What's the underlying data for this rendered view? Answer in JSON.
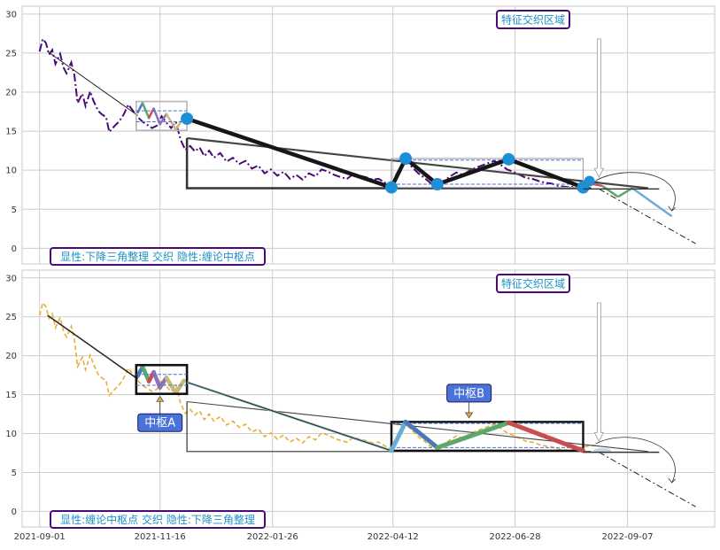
{
  "colors": {
    "grid": "#cccccc",
    "frame": "#c9c9c9",
    "price_top": "#4b0a7a",
    "price_bottom": "#e8ae35",
    "label_border": "#4b0a7a",
    "label_text": "#1e90c8",
    "box_fill": "#4a72d8",
    "node": "#1e8fd6",
    "seg_blue": "#6aaed6",
    "seg_steel": "#4a78b8",
    "seg_green": "#5aa86a",
    "seg_red": "#c84e4e",
    "seg_purple": "#8a73b8",
    "seg_khaki": "#c8b87a"
  },
  "chart_data": [
    {
      "type": "line",
      "panel": "top",
      "ylim": [
        -2,
        31
      ],
      "yticks": [
        0,
        5,
        10,
        15,
        20,
        25,
        30
      ],
      "xlim": [
        "2021-08-21",
        "2022-11-01"
      ],
      "xticks": [
        "2021-09-01",
        "2021-11-16",
        "2022-01-26",
        "2022-04-12",
        "2022-06-28",
        "2022-09-07"
      ],
      "xtick_labels": [
        "",
        "",
        "",
        "",
        "",
        ""
      ],
      "grid": true,
      "series": [
        {
          "style": "dashdot",
          "x": [
            "2021-09-01",
            "2021-09-03",
            "2021-09-05",
            "2021-09-07",
            "2021-09-09",
            "2021-09-11",
            "2021-09-14",
            "2021-09-16",
            "2021-09-18",
            "2021-09-21",
            "2021-09-23",
            "2021-09-25",
            "2021-09-28",
            "2021-09-30",
            "2021-10-03",
            "2021-10-05",
            "2021-10-08",
            "2021-10-10",
            "2021-10-13",
            "2021-10-15",
            "2021-10-18",
            "2021-10-21",
            "2021-10-24",
            "2021-10-27",
            "2021-10-30",
            "2021-11-02",
            "2021-11-05",
            "2021-11-08",
            "2021-11-11",
            "2021-11-14",
            "2021-11-17",
            "2021-11-20",
            "2021-11-23",
            "2021-11-26",
            "2021-11-29",
            "2021-12-02",
            "2021-12-05",
            "2021-12-08",
            "2021-12-11",
            "2021-12-14",
            "2021-12-17",
            "2021-12-20",
            "2021-12-24",
            "2021-12-28",
            "2022-01-01",
            "2022-01-05",
            "2022-01-09",
            "2022-01-13",
            "2022-01-17",
            "2022-01-21",
            "2022-01-25",
            "2022-01-29",
            "2022-02-02",
            "2022-02-06",
            "2022-02-10",
            "2022-02-14",
            "2022-02-18",
            "2022-02-22",
            "2022-02-26",
            "2022-03-02",
            "2022-03-06",
            "2022-03-10",
            "2022-03-14",
            "2022-03-18",
            "2022-03-22",
            "2022-03-26",
            "2022-03-30",
            "2022-04-03",
            "2022-04-07",
            "2022-04-09",
            "2022-04-11",
            "2022-04-14",
            "2022-04-17",
            "2022-04-20",
            "2022-04-24",
            "2022-04-28",
            "2022-05-02",
            "2022-05-06",
            "2022-05-10",
            "2022-05-14",
            "2022-05-18",
            "2022-05-22",
            "2022-05-26",
            "2022-05-30",
            "2022-06-03",
            "2022-06-07",
            "2022-06-11",
            "2022-06-15",
            "2022-06-19",
            "2022-06-23",
            "2022-06-27",
            "2022-07-01",
            "2022-07-05",
            "2022-07-09",
            "2022-07-13",
            "2022-07-17",
            "2022-07-21",
            "2022-07-25",
            "2022-07-29",
            "2022-08-02",
            "2022-08-06",
            "2022-08-10",
            "2022-08-14",
            "2022-08-18",
            "2022-08-20"
          ],
          "y": [
            25.2,
            26.8,
            26.3,
            24.8,
            25.4,
            23.6,
            24.9,
            23.2,
            22.4,
            23.8,
            22.1,
            18.6,
            19.8,
            18.2,
            20.1,
            18.9,
            17.6,
            17.2,
            16.8,
            14.9,
            15.6,
            16.2,
            17.1,
            18.4,
            17.6,
            16.8,
            16.2,
            15.8,
            15.4,
            15.7,
            16.9,
            16.1,
            15.4,
            16.2,
            13.9,
            12.6,
            13.1,
            12.4,
            12.9,
            11.8,
            12.5,
            11.6,
            12.2,
            11.1,
            11.6,
            10.8,
            11.2,
            10.2,
            10.6,
            9.6,
            10.1,
            9.3,
            9.8,
            8.9,
            9.4,
            8.8,
            9.6,
            9.2,
            10.1,
            9.8,
            9.4,
            9.1,
            8.9,
            9.5,
            9.3,
            9.1,
            8.8,
            8.9,
            8.4,
            8.2,
            7.9,
            9.4,
            10.5,
            11.2,
            10.4,
            9.6,
            9.0,
            8.3,
            8.1,
            8.6,
            9.2,
            9.7,
            9.4,
            9.9,
            10.3,
            10.6,
            10.9,
            11.2,
            10.7,
            10.1,
            9.8,
            9.4,
            9.0,
            8.9,
            8.6,
            8.4,
            8.3,
            8.0,
            7.9,
            7.8,
            8.1,
            8.3,
            8.4,
            8.5,
            8.4
          ]
        }
      ],
      "annotations": {
        "topright_label": "特征交织区域",
        "bottom_label": "显性:下降三角整理 交织 隐性:缠论中枢点"
      }
    },
    {
      "type": "line",
      "panel": "bottom",
      "ylim": [
        -2,
        31
      ],
      "yticks": [
        0,
        5,
        10,
        15,
        20,
        25,
        30
      ],
      "xlim": [
        "2021-08-21",
        "2022-11-01"
      ],
      "xticks": [
        "2021-09-01",
        "2021-11-16",
        "2022-01-26",
        "2022-04-12",
        "2022-06-28",
        "2022-09-07"
      ],
      "xtick_labels": [
        "2021-09-01",
        "2021-11-16",
        "2022-01-26",
        "2022-04-12",
        "2022-06-28",
        "2022-09-07"
      ],
      "grid": true,
      "series": [
        {
          "style": "dashed",
          "x": [
            "2021-09-01",
            "2021-09-03",
            "2021-09-05",
            "2021-09-07",
            "2021-09-09",
            "2021-09-11",
            "2021-09-14",
            "2021-09-16",
            "2021-09-18",
            "2021-09-21",
            "2021-09-23",
            "2021-09-25",
            "2021-09-28",
            "2021-09-30",
            "2021-10-03",
            "2021-10-05",
            "2021-10-08",
            "2021-10-10",
            "2021-10-13",
            "2021-10-15",
            "2021-10-18",
            "2021-10-21",
            "2021-10-24",
            "2021-10-27",
            "2021-10-30",
            "2021-11-02",
            "2021-11-05",
            "2021-11-08",
            "2021-11-11",
            "2021-11-14",
            "2021-11-17",
            "2021-11-20",
            "2021-11-23",
            "2021-11-26",
            "2021-11-29",
            "2021-12-02",
            "2021-12-05",
            "2021-12-08",
            "2021-12-11",
            "2021-12-14",
            "2021-12-17",
            "2021-12-20",
            "2021-12-24",
            "2021-12-28",
            "2022-01-01",
            "2022-01-05",
            "2022-01-09",
            "2022-01-13",
            "2022-01-17",
            "2022-01-21",
            "2022-01-25",
            "2022-01-29",
            "2022-02-02",
            "2022-02-06",
            "2022-02-10",
            "2022-02-14",
            "2022-02-18",
            "2022-02-22",
            "2022-02-26",
            "2022-03-02",
            "2022-03-06",
            "2022-03-10",
            "2022-03-14",
            "2022-03-18",
            "2022-03-22",
            "2022-03-26",
            "2022-03-30",
            "2022-04-03",
            "2022-04-07",
            "2022-04-09",
            "2022-04-11",
            "2022-04-14",
            "2022-04-17",
            "2022-04-20",
            "2022-04-24",
            "2022-04-28",
            "2022-05-02",
            "2022-05-06",
            "2022-05-10",
            "2022-05-14",
            "2022-05-18",
            "2022-05-22",
            "2022-05-26",
            "2022-05-30",
            "2022-06-03",
            "2022-06-07",
            "2022-06-11",
            "2022-06-15",
            "2022-06-19",
            "2022-06-23",
            "2022-06-27",
            "2022-07-01",
            "2022-07-05",
            "2022-07-09",
            "2022-07-13",
            "2022-07-17",
            "2022-07-21",
            "2022-07-25",
            "2022-07-29",
            "2022-08-02",
            "2022-08-06",
            "2022-08-10",
            "2022-08-14",
            "2022-08-18",
            "2022-08-20"
          ],
          "y": [
            25.2,
            26.8,
            26.3,
            24.8,
            25.4,
            23.6,
            24.9,
            23.2,
            22.4,
            23.8,
            22.1,
            18.6,
            19.8,
            18.2,
            20.1,
            18.9,
            17.6,
            17.2,
            16.8,
            14.9,
            15.6,
            16.2,
            17.1,
            18.4,
            17.6,
            16.8,
            16.2,
            15.8,
            15.4,
            15.7,
            16.9,
            16.1,
            15.4,
            16.2,
            13.9,
            12.6,
            13.1,
            12.4,
            12.9,
            11.8,
            12.5,
            11.6,
            12.2,
            11.1,
            11.6,
            10.8,
            11.2,
            10.2,
            10.6,
            9.6,
            10.1,
            9.3,
            9.8,
            8.9,
            9.4,
            8.8,
            9.6,
            9.2,
            10.1,
            9.8,
            9.4,
            9.1,
            8.9,
            9.5,
            9.3,
            9.1,
            8.8,
            8.9,
            8.4,
            8.2,
            7.9,
            9.4,
            10.5,
            11.2,
            10.4,
            9.6,
            9.0,
            8.3,
            8.1,
            8.6,
            9.2,
            9.7,
            9.4,
            9.9,
            10.3,
            10.6,
            10.9,
            11.2,
            10.7,
            10.1,
            9.8,
            9.4,
            9.0,
            8.9,
            8.6,
            8.4,
            8.3,
            8.0,
            7.9,
            7.8,
            8.1,
            8.3,
            8.4,
            8.5,
            8.4
          ]
        }
      ],
      "annotations": {
        "topright_label": "特征交织区域",
        "bottom_label": "显性:缠论中枢点 交织 隐性:下降三角整理",
        "zhongshu_a": "中枢A",
        "zhongshu_b": "中枢B"
      }
    }
  ]
}
